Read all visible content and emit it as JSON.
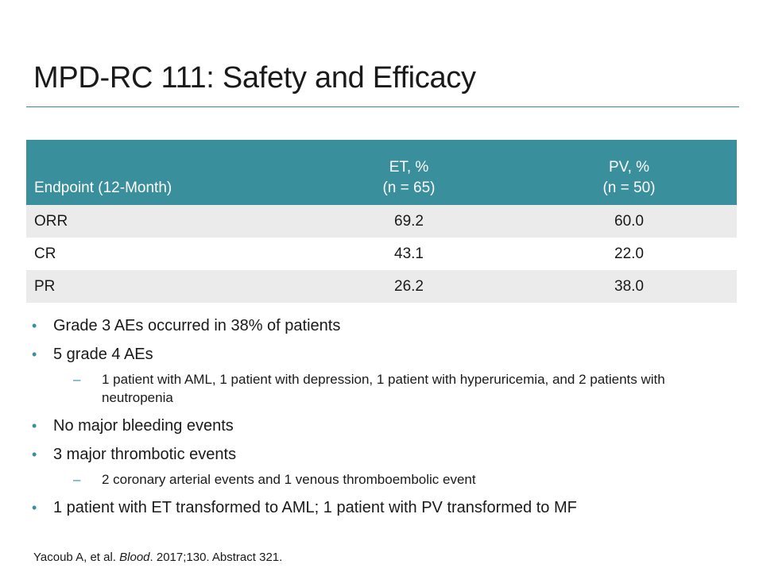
{
  "title": "MPD-RC 111: Safety and Efficacy",
  "table": {
    "headers": [
      {
        "line1": "",
        "line2": "Endpoint (12-Month)"
      },
      {
        "line1": "ET, %",
        "line2": "(n = 65)"
      },
      {
        "line1": "PV, %",
        "line2": "(n = 50)"
      }
    ],
    "rows": [
      [
        "ORR",
        "69.2",
        "60.0"
      ],
      [
        "CR",
        "43.1",
        "22.0"
      ],
      [
        "PR",
        "26.2",
        "38.0"
      ]
    ]
  },
  "bullets": [
    {
      "level": 1,
      "text": "Grade 3 AEs occurred in 38% of patients"
    },
    {
      "level": 1,
      "text": "5 grade 4 AEs"
    },
    {
      "level": 2,
      "text": "1 patient with AML, 1 patient with depression, 1 patient with hyperuricemia, and 2 patients with neutropenia"
    },
    {
      "level": 1,
      "text": "No major bleeding events"
    },
    {
      "level": 1,
      "text": "3 major thrombotic events"
    },
    {
      "level": 2,
      "text": "2 coronary arterial events and 1 venous thromboembolic event"
    },
    {
      "level": 1,
      "text": "1 patient with ET transformed to AML; 1 patient with PV transformed to MF"
    }
  ],
  "footnote": {
    "prefix": "Yacoub A, et al. ",
    "journal": "Blood",
    "suffix": ". 2017;130. Abstract 321."
  },
  "colors": {
    "accent": "#3a8f9c",
    "row_shade": "#ebebeb"
  }
}
